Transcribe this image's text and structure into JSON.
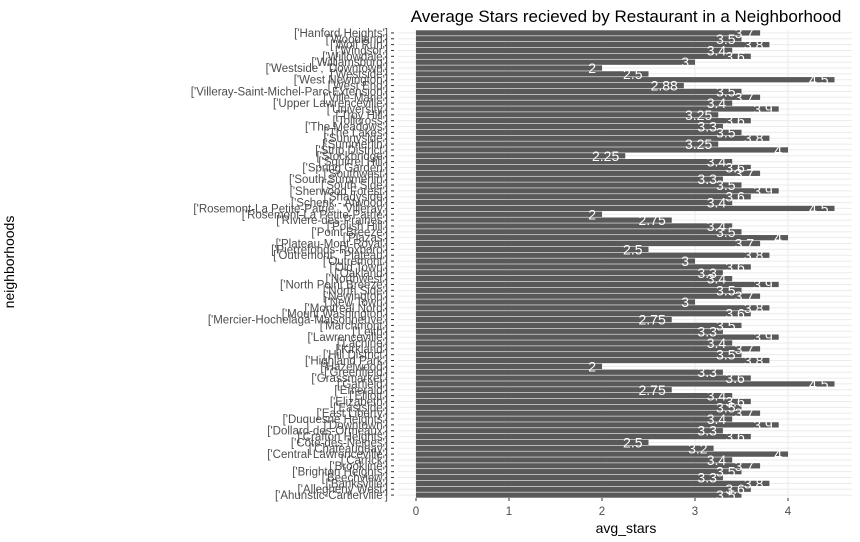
{
  "chart_data": {
    "type": "bar",
    "orientation": "horizontal",
    "title": "Average Stars recieved by Restaurant in a Neighborhood",
    "xlabel": "avg_stars",
    "ylabel": "neighborhoods",
    "xlim": [
      0,
      4.6
    ],
    "xticks": [
      "0",
      "1",
      "2",
      "3",
      "4"
    ],
    "grid": true,
    "legend": "none",
    "bar_color": "#595959",
    "categories": [
      "['Ahunstic-Cartierville']",
      "['Allegheny West']",
      "['Banksville']",
      "['Beechview']",
      "['Brighton Heights']",
      "['Brookline']",
      "['Carrick']",
      "['Central Lawrenceville']",
      "['Chateauguay']",
      "['Côte-des-Neiges']",
      "['Crafton Heights']",
      "['Dollard-des-Ormeaux']",
      "['Downtown']",
      "['Duquesne Heights']",
      "['East Liberty']",
      "['Eastside']",
      "['Elizabeth']",
      "['Elliott']",
      "['Emerald']",
      "['Garfield']",
      "['Grassmarket']",
      "['Greenfield']",
      "['Hazelwood']",
      "['Highland Park']",
      "['Hill District']",
      "['Kirkland']",
      "['Lachine']",
      "['Lawrenceville']",
      "['Leith']",
      "['Marchmont']",
      "['Mercier-Hochelaga-Maisonneuve']",
      "['Mount Washington']",
      "['Montreal Nord']",
      "['New Town']",
      "['Newington']",
      "['North Side']",
      "['North Point Breeze']",
      "['Northwest']",
      "['Oakland']",
      "['Old Town']",
      "['Outremont']",
      "['Outremont', 'Plateau']",
      "['Pierrefonds-Roxboro']",
      "['Plateau-Mont-Royal']",
      "['Plazas']",
      "['Point Breeze']",
      "['Polish Hill']",
      "['Rivière-des-Prairies']",
      "['Rosemont-La Petite-Patrie']",
      "['Rosemont-La Petite-Patrie', 'Villeray']",
      "['Schenk - Atwood']",
      "['Shadyside']",
      "['Sherwood Forest']",
      "['South Side']",
      "['South Summerlin']",
      "['Southwest']",
      "['Spring Garden']",
      "['Squirrel Hill']",
      "['Stockbridge']",
      "['Strip District']",
      "['Summerlin']",
      "['Sunnyside']",
      "['The Lakes']",
      "['The Meadows']",
      "['Tollcross']",
      "['Troy Hill']",
      "['University']",
      "['Upper Lawrenceville']",
      "['Ville-Marie']",
      "['Villeray-Saint-Michel-Parc-Extension']",
      "['West End']",
      "['West Newington']",
      "['Westside']",
      "['Westside', 'Downtown']",
      "['Williamsburg']",
      "['Willowdale']",
      "['Windsor']",
      "['Wolf Run']",
      "['Woodland']",
      "['Hanford Heights']"
    ],
    "values": [
      3.5,
      3.6,
      3.8,
      3.3,
      3.5,
      3.7,
      3.4,
      4.0,
      3.2,
      2.5,
      3.6,
      3.3,
      3.9,
      3.4,
      3.7,
      3.5,
      3.6,
      3.4,
      2.75,
      4.5,
      3.6,
      3.3,
      2.0,
      3.8,
      3.5,
      3.7,
      3.4,
      3.9,
      3.3,
      3.5,
      2.75,
      3.6,
      3.8,
      3.0,
      3.7,
      3.5,
      3.9,
      3.4,
      3.3,
      3.6,
      3.0,
      3.8,
      2.5,
      3.7,
      4.0,
      3.5,
      3.4,
      2.75,
      2.0,
      4.5,
      3.4,
      3.6,
      3.9,
      3.5,
      3.3,
      3.7,
      3.6,
      3.4,
      2.25,
      4.0,
      3.25,
      3.8,
      3.5,
      3.3,
      3.6,
      3.25,
      3.9,
      3.4,
      3.7,
      3.5,
      2.88,
      4.5,
      2.5,
      2.0,
      3.0,
      3.6,
      3.4,
      3.8,
      3.5,
      3.7
    ],
    "data_labels": [
      "3.5",
      "3.6",
      "3.8",
      "3.3",
      "3.5",
      "3.7",
      "3.4",
      "4",
      "3.2",
      "2.5",
      "3.6",
      "3.3",
      "3.9",
      "3.4",
      "3.7",
      "3.5",
      "3.6",
      "3.4",
      "2.75",
      "4.5",
      "3.6",
      "3.3",
      "2",
      "3.8",
      "3.5",
      "3.7",
      "3.4",
      "3.9",
      "3.3",
      "3.5",
      "2.75",
      "3.6",
      "3.8",
      "3",
      "3.7",
      "3.5",
      "3.9",
      "3.4",
      "3.3",
      "3.6",
      "3",
      "3.8",
      "2.5",
      "3.7",
      "4",
      "3.5",
      "3.4",
      "2.75",
      "2",
      "4.5",
      "3.4",
      "3.6",
      "3.9",
      "3.5",
      "3.3",
      "3.7",
      "3.6",
      "3.4",
      "2.25",
      "4",
      "3.25",
      "3.8",
      "3.5",
      "3.3",
      "3.6",
      "3.25",
      "3.9",
      "3.4",
      "3.7",
      "3.5",
      "2.88",
      "4.5",
      "2.5",
      "2",
      "3",
      "3.6",
      "3.4",
      "3.8",
      "3.5",
      "3.7"
    ]
  }
}
